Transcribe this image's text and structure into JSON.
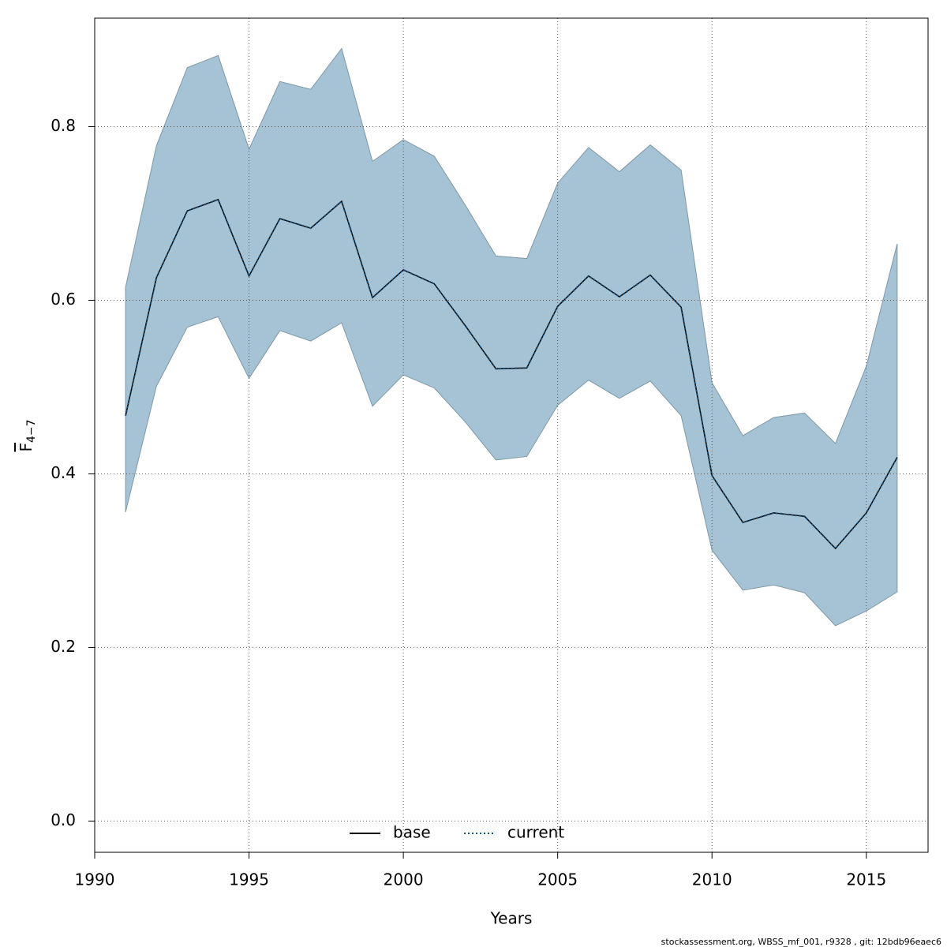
{
  "chart_data": {
    "type": "line",
    "xlabel": "Years",
    "ylabel": "F",
    "ylabel_sub": "4−7",
    "footnote": "stockassessment.org, WBSS_mf_001, r9328 , git: 12bdb96eaec6",
    "x": [
      1991,
      1992,
      1993,
      1994,
      1995,
      1996,
      1997,
      1998,
      1999,
      2000,
      2001,
      2002,
      2003,
      2004,
      2005,
      2006,
      2007,
      2008,
      2009,
      2010,
      2011,
      2012,
      2013,
      2014,
      2015,
      2016
    ],
    "band": {
      "color": "#a5c3d4",
      "upper": [
        0.615,
        0.778,
        0.868,
        0.882,
        0.774,
        0.852,
        0.843,
        0.89,
        0.76,
        0.785,
        0.766,
        0.71,
        0.651,
        0.648,
        0.735,
        0.776,
        0.748,
        0.779,
        0.75,
        0.505,
        0.444,
        0.465,
        0.47,
        0.435,
        0.524,
        0.665
      ],
      "lower": [
        0.356,
        0.501,
        0.569,
        0.581,
        0.51,
        0.565,
        0.553,
        0.574,
        0.478,
        0.514,
        0.499,
        0.46,
        0.416,
        0.42,
        0.479,
        0.508,
        0.487,
        0.507,
        0.467,
        0.312,
        0.266,
        0.272,
        0.263,
        0.225,
        0.242,
        0.264
      ]
    },
    "series": [
      {
        "name": "base",
        "color": "#000000",
        "linestyle": "solid",
        "values": [
          0.467,
          0.626,
          0.703,
          0.716,
          0.628,
          0.694,
          0.683,
          0.714,
          0.603,
          0.635,
          0.619,
          0.571,
          0.521,
          0.522,
          0.593,
          0.628,
          0.604,
          0.629,
          0.592,
          0.398,
          0.344,
          0.355,
          0.351,
          0.314,
          0.355,
          0.419
        ]
      },
      {
        "name": "current",
        "color": "#14507e",
        "linestyle": "dotted",
        "values": [
          0.467,
          0.626,
          0.703,
          0.716,
          0.628,
          0.694,
          0.683,
          0.714,
          0.603,
          0.635,
          0.619,
          0.571,
          0.521,
          0.522,
          0.593,
          0.628,
          0.604,
          0.629,
          0.592,
          0.398,
          0.344,
          0.355,
          0.351,
          0.314,
          0.355,
          0.419
        ]
      }
    ],
    "xlim": [
      1990,
      2017
    ],
    "xticks": [
      1990,
      1995,
      2000,
      2005,
      2010,
      2015
    ],
    "ylim": [
      -0.036,
      0.925
    ],
    "yticks": [
      {
        "value": 0,
        "label": "0.0"
      },
      0.2,
      0.4,
      0.6,
      0.8
    ],
    "grid": true,
    "legend": "bottom"
  }
}
